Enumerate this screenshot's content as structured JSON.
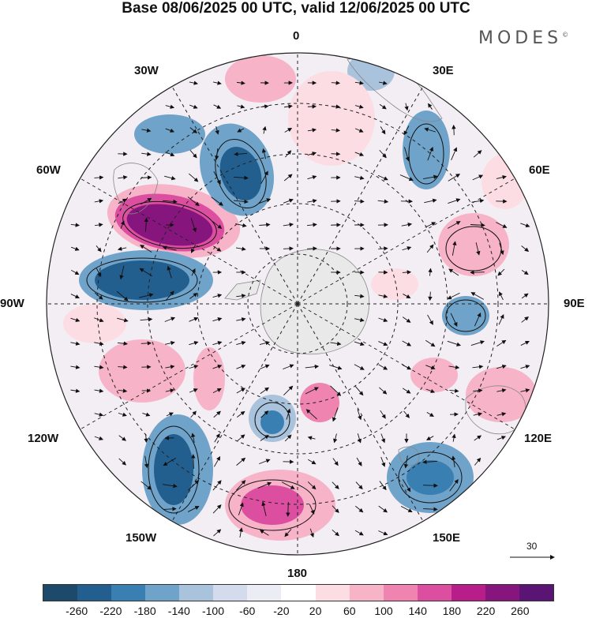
{
  "title": "Base 08/06/2025 00 UTC, valid 12/06/2025 00 UTC",
  "brand": "MODES",
  "brand_mark": "©",
  "lon_labels": {
    "n0": "0",
    "e30": "30E",
    "e60": "60E",
    "e90": "90E",
    "e120": "120E",
    "e150": "150E",
    "s180": "180",
    "w150": "150W",
    "w120": "120W",
    "w90": "90W",
    "w60": "60W",
    "w30": "30W"
  },
  "reference_vector": "30",
  "colorbar": {
    "ticks": [
      "-260",
      "-220",
      "-180",
      "-140",
      "-100",
      "-60",
      "-20",
      "20",
      "60",
      "100",
      "140",
      "180",
      "220",
      "260"
    ],
    "colors": [
      "#1d4a6b",
      "#225f8f",
      "#3a7fb2",
      "#6fa3c9",
      "#a9c3dd",
      "#d3dbec",
      "#ececf4",
      "#ffffff",
      "#fcdde3",
      "#f7b3c8",
      "#ef84b0",
      "#dc4ea0",
      "#b81e8a",
      "#86157d",
      "#5a1474"
    ]
  },
  "colors": {
    "land": "#cccccc",
    "grid": "#222222",
    "contour": "#111111"
  }
}
